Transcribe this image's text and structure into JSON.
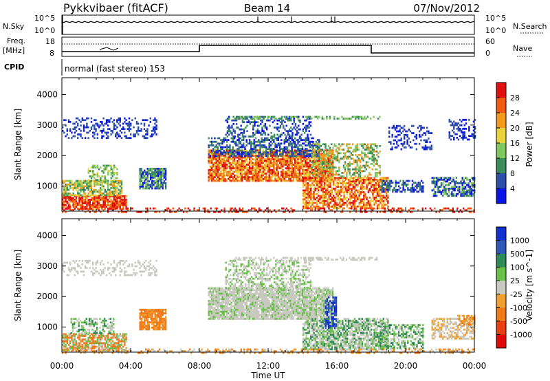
{
  "header": {
    "title": "Pykkvibaer (fitACF)",
    "beam": "Beam 14",
    "date": "07/Nov/2012"
  },
  "panels": {
    "nsky_label": "N.Sky",
    "nsearch_label": "N.Search",
    "nsky_ticks": [
      "10^5",
      "10^0"
    ],
    "nsky_right_ticks": [
      "10^5",
      "10^0"
    ],
    "freq_label_1": "Freq.",
    "freq_label_2": "[MHz]",
    "freq_ticks": [
      "18",
      "8"
    ],
    "nave_label": "Nave",
    "nave_ticks": [
      "60",
      "0"
    ],
    "cpid_label": "CPID",
    "cpid_value": "normal (fast stereo) 153"
  },
  "colors": {
    "power": [
      "#0a14e6",
      "#2d4fa8",
      "#3a8c5a",
      "#7fc860",
      "#e8d23a",
      "#f39a1e",
      "#f25a14",
      "#e01010"
    ],
    "velocity": [
      "#1030d0",
      "#2e58b8",
      "#2e8a56",
      "#68c048",
      "#c8c8c0",
      "#f0a030",
      "#f07a18",
      "#e84010",
      "#e00a0a"
    ]
  },
  "chart_data": [
    {
      "type": "heatmap",
      "name": "power",
      "xlabel": "",
      "ylabel": "Slant Range [km]",
      "x_ticks": [
        "00:00",
        "04:00",
        "08:00",
        "12:00",
        "16:00",
        "20:00",
        "00:00"
      ],
      "y_ticks": [
        "4000",
        "3000",
        "2000",
        "1000"
      ],
      "ylim": [
        180,
        4550
      ],
      "colorbar_label": "Power [dB]",
      "colorbar_ticks": [
        "28",
        "24",
        "20",
        "16",
        "12",
        "8",
        "4"
      ]
    },
    {
      "type": "heatmap",
      "name": "velocity",
      "xlabel": "Time UT",
      "ylabel": "Slant Range [km]",
      "x_ticks": [
        "00:00",
        "04:00",
        "08:00",
        "12:00",
        "16:00",
        "20:00",
        "00:00"
      ],
      "y_ticks": [
        "4000",
        "3000",
        "2000",
        "1000"
      ],
      "ylim": [
        180,
        4550
      ],
      "colorbar_label": "Velocity [m s^-1]",
      "colorbar_ticks": [
        "1000",
        "500",
        "100",
        "25",
        "-25",
        "-100",
        "-500",
        "-1000"
      ]
    }
  ]
}
